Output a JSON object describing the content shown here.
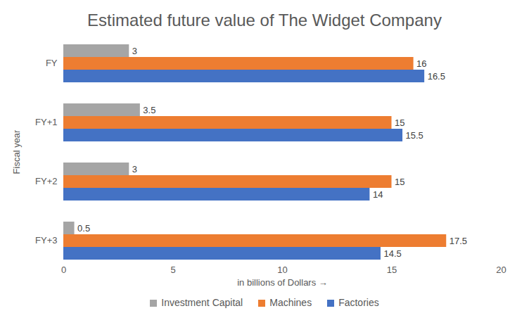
{
  "chart_data": {
    "type": "bar",
    "orientation": "horizontal",
    "title": "Estimated future value of The Widget Company",
    "x_label": "in billions of Dollars",
    "y_label": "Fiscal year",
    "categories": [
      "FY",
      "FY+1",
      "FY+2",
      "FY+3"
    ],
    "series": [
      {
        "name": "Investment Capital",
        "color": "#a5a5a5",
        "values": [
          3,
          3.5,
          3,
          0.5
        ]
      },
      {
        "name": "Machines",
        "color": "#ed7d31",
        "values": [
          16,
          15,
          15,
          17.5
        ]
      },
      {
        "name": "Factories",
        "color": "#4472c4",
        "values": [
          16.5,
          15.5,
          14,
          14.5
        ]
      }
    ],
    "xlim": [
      0,
      20
    ],
    "xticks": [
      0,
      5,
      10,
      15,
      20
    ],
    "grid": false,
    "data_labels": true,
    "legend": "bottom"
  }
}
